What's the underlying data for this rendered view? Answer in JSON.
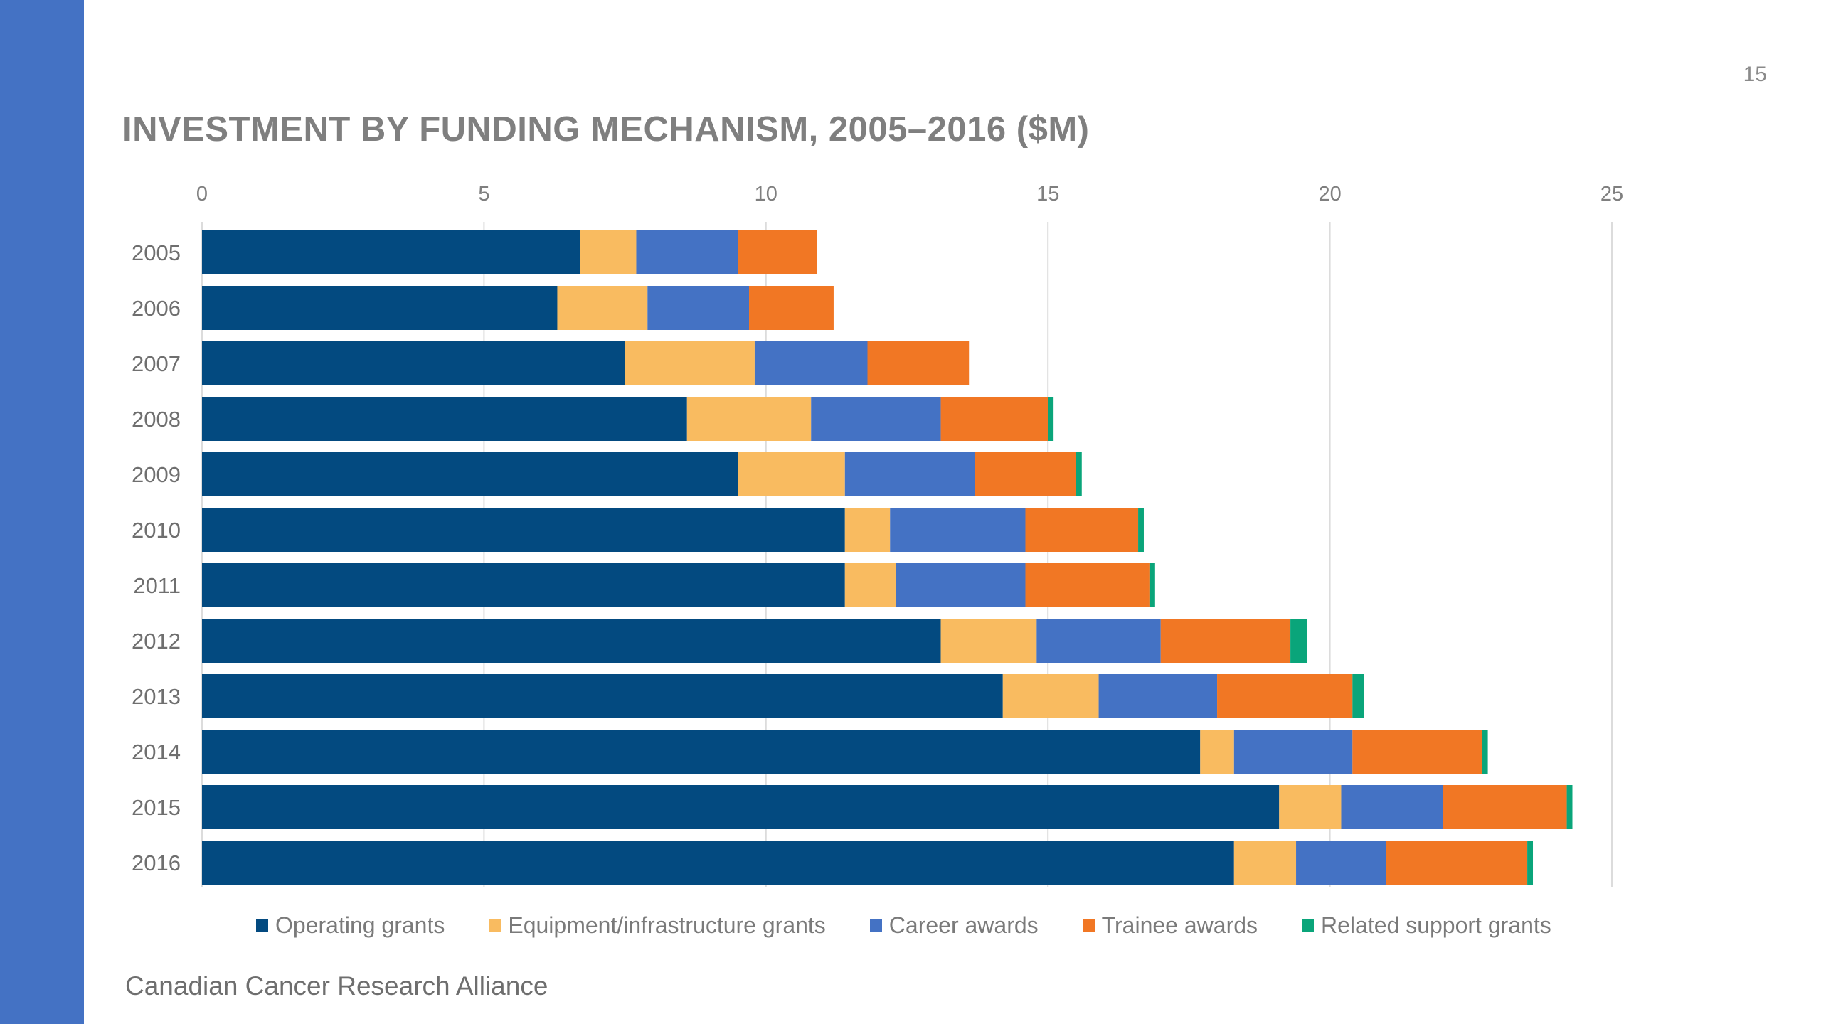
{
  "slide": {
    "page_number": "15",
    "footer": "Canadian Cancer Research Alliance",
    "accent_color": "#4472c4"
  },
  "chart_data": {
    "type": "bar",
    "orientation": "horizontal",
    "stacked": true,
    "title": "INVESTMENT BY FUNDING MECHANISM, 2005–2016 ($M)",
    "xlabel": "",
    "ylabel": "",
    "x_axis_position": "top",
    "xlim": [
      0,
      25
    ],
    "x_ticks": [
      0,
      5,
      10,
      15,
      20,
      25
    ],
    "grid": true,
    "legend_position": "bottom",
    "categories": [
      "2005",
      "2006",
      "2007",
      "2008",
      "2009",
      "2010",
      "2011",
      "2012",
      "2013",
      "2014",
      "2015",
      "2016"
    ],
    "series": [
      {
        "name": "Operating grants",
        "color": "#034a80",
        "values": [
          6.7,
          6.3,
          7.5,
          8.6,
          9.5,
          11.4,
          11.4,
          13.1,
          14.2,
          17.7,
          19.1,
          18.3
        ]
      },
      {
        "name": "Equipment/infrastructure grants",
        "color": "#f9bb60",
        "values": [
          1.0,
          1.6,
          2.3,
          2.2,
          1.9,
          0.8,
          0.9,
          1.7,
          1.7,
          0.6,
          1.1,
          1.1
        ]
      },
      {
        "name": "Career awards",
        "color": "#4472c4",
        "values": [
          1.8,
          1.8,
          2.0,
          2.3,
          2.3,
          2.4,
          2.3,
          2.2,
          2.1,
          2.1,
          1.8,
          1.6
        ]
      },
      {
        "name": "Trainee awards",
        "color": "#f17724",
        "values": [
          1.4,
          1.5,
          1.8,
          1.9,
          1.8,
          2.0,
          2.2,
          2.3,
          2.4,
          2.3,
          2.2,
          2.5
        ]
      },
      {
        "name": "Related support grants",
        "color": "#0aa57a",
        "values": [
          0.0,
          0.0,
          0.0,
          0.1,
          0.1,
          0.1,
          0.1,
          0.3,
          0.2,
          0.1,
          0.1,
          0.1
        ]
      }
    ]
  }
}
